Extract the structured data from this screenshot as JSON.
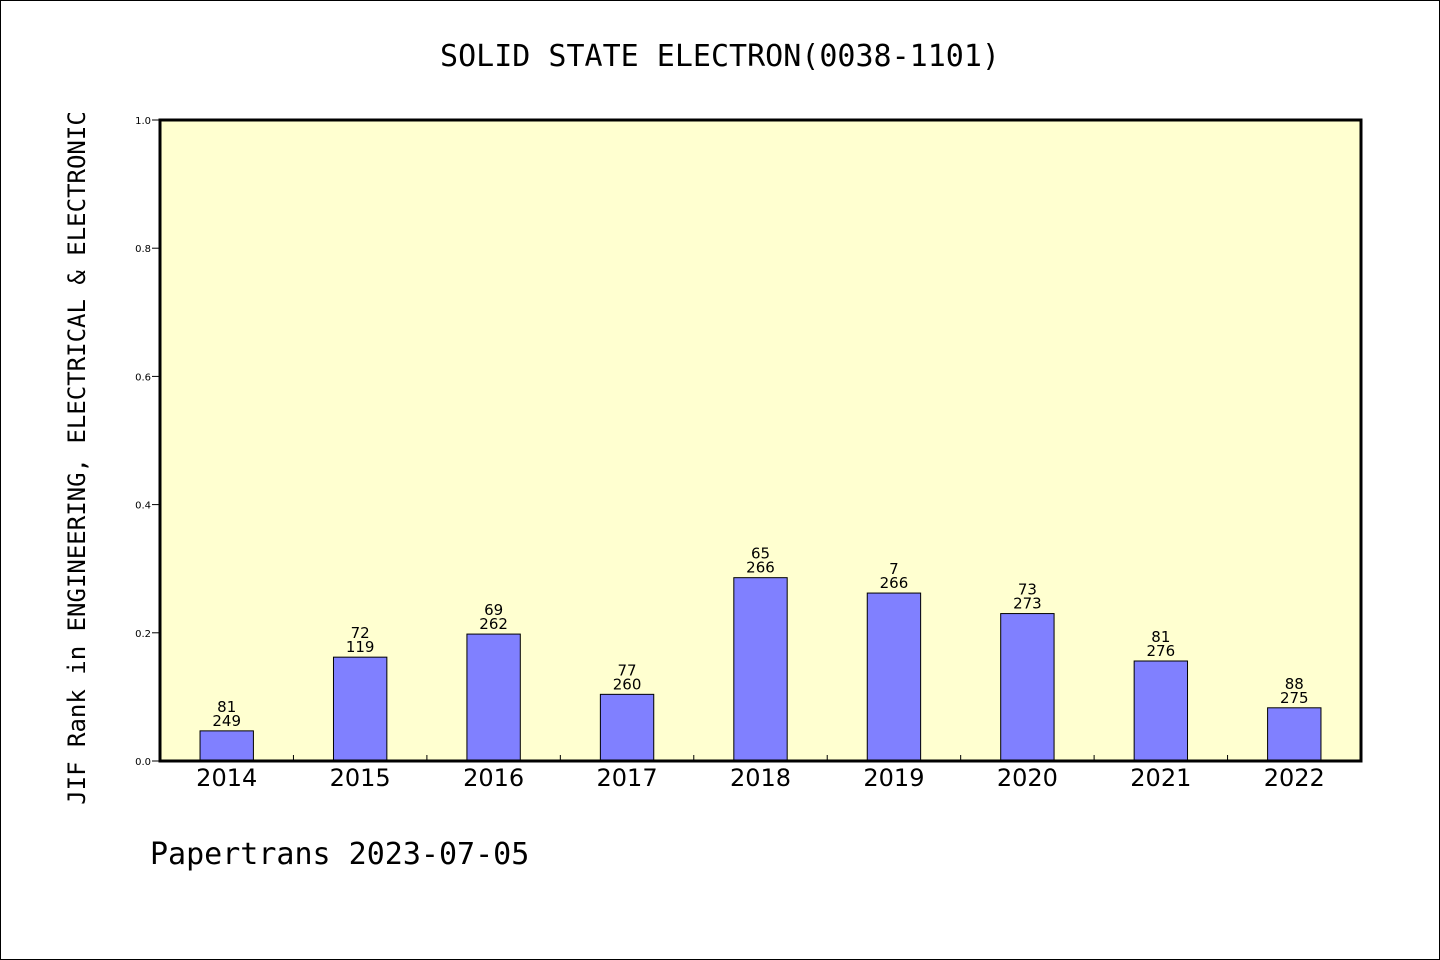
{
  "chart_data": {
    "type": "bar",
    "title": "SOLID STATE ELECTRON(0038-1101)",
    "ylabel": "JIF Rank in ENGINEERING, ELECTRICAL & ELECTRONIC",
    "xlabel": "",
    "categories": [
      "2014",
      "2015",
      "2016",
      "2017",
      "2018",
      "2019",
      "2020",
      "2021",
      "2022"
    ],
    "values": [
      0.047,
      0.162,
      0.198,
      0.104,
      0.286,
      0.262,
      0.23,
      0.156,
      0.083
    ],
    "rank_labels": [
      "81",
      "72",
      "69",
      "77",
      "65",
      "7",
      "73",
      "81",
      "88"
    ],
    "total_labels": [
      "249",
      "119",
      "262",
      "260",
      "266",
      "266",
      "273",
      "276",
      "275"
    ],
    "ylim": [
      0,
      1.0
    ],
    "yticks": [
      "0.0",
      "0.2",
      "0.4",
      "0.6",
      "0.8",
      "1.0"
    ],
    "grid": false,
    "legend": "none",
    "colors": {
      "plot_background": "#ffffd0",
      "bar_fill": "#8080ff",
      "bar_stroke": "#000000",
      "axis": "#000000"
    }
  },
  "footer": {
    "text": "Papertrans 2023-07-05"
  }
}
